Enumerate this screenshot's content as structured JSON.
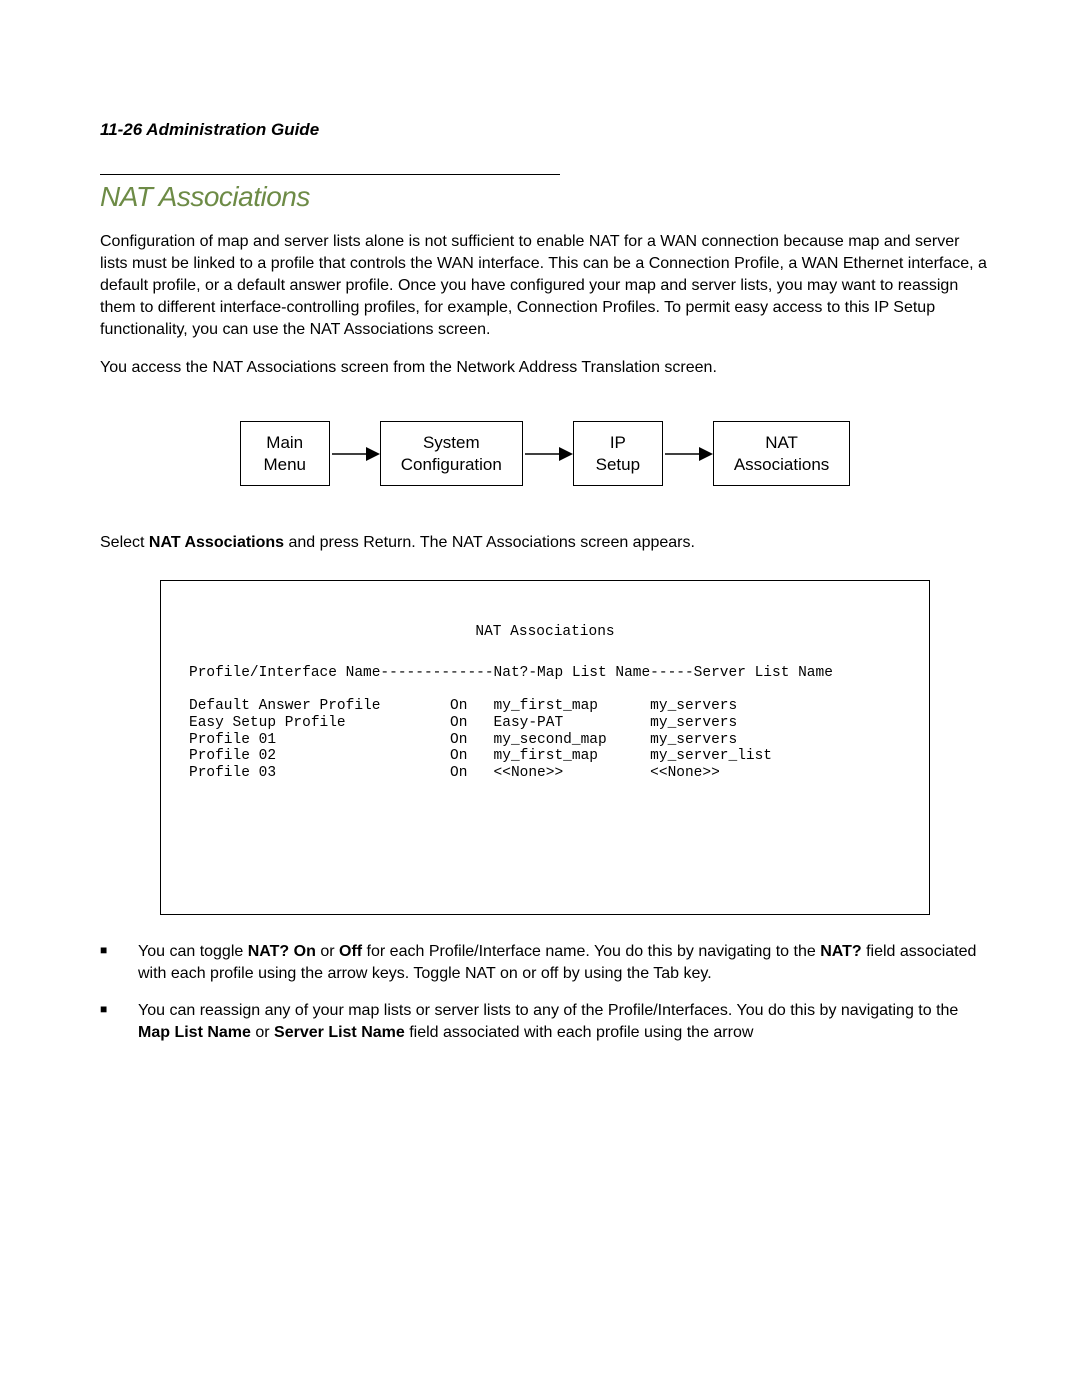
{
  "header": "11-26  Administration Guide",
  "section_title": "NAT Associations",
  "section_title_color": "#6d8b46",
  "intro_para": "Configuration of map and server lists alone is not sufficient to enable NAT for a WAN connection because map and server lists must be linked to a profile that controls the WAN interface. This can be a Connection Profile, a WAN Ethernet interface, a default profile, or a default answer profile. Once you have configured your map and server lists, you may want to reassign them to different interface-controlling profiles, for example, Connection Profiles. To permit easy access to this IP Setup functionality, you can use the NAT Associations screen.",
  "access_para": "You access the NAT Associations screen from the Network Address Translation screen.",
  "flow": {
    "box1_line1": "Main",
    "box1_line2": "Menu",
    "box2_line1": "System",
    "box2_line2": "Configuration",
    "box3_line1": "IP",
    "box3_line2": "Setup",
    "box4_line1": "NAT",
    "box4_line2": "Associations"
  },
  "instruction_pre": "Select ",
  "instruction_bold": "NAT Associations",
  "instruction_post": " and press Return. The NAT Associations screen appears.",
  "terminal": {
    "title": "NAT Associations",
    "header_line": "Profile/Interface Name-------------Nat?-Map List Name-----Server List Name",
    "rows": [
      {
        "name": "Default Answer Profile",
        "nat": "On",
        "map": "my_first_map",
        "srv": "my_servers"
      },
      {
        "name": "Easy Setup Profile",
        "nat": "On",
        "map": "Easy-PAT",
        "srv": "my_servers"
      },
      {
        "name": "Profile 01",
        "nat": "On",
        "map": "my_second_map",
        "srv": "my_servers"
      },
      {
        "name": "Profile 02",
        "nat": "On",
        "map": "my_first_map",
        "srv": "my_server_list"
      },
      {
        "name": "Profile 03",
        "nat": "On",
        "map": "<<None>>",
        "srv": "<<None>>"
      }
    ],
    "col_widths": {
      "name": 30,
      "nat": 5,
      "map": 18
    }
  },
  "bullets": [
    {
      "parts": [
        {
          "t": "You can toggle ",
          "b": false
        },
        {
          "t": "NAT? On",
          "b": true
        },
        {
          "t": " or ",
          "b": false
        },
        {
          "t": "Off",
          "b": true
        },
        {
          "t": " for each Profile/Interface name. You do this by navigating to the ",
          "b": false
        },
        {
          "t": "NAT?",
          "b": true
        },
        {
          "t": " field associated with each profile using the arrow keys. Toggle NAT on or off by using the Tab key.",
          "b": false
        }
      ]
    },
    {
      "parts": [
        {
          "t": "You can reassign any of your map lists or server lists to any of the Profile/Interfaces. You do this by navigating to the ",
          "b": false
        },
        {
          "t": "Map List Name",
          "b": true
        },
        {
          "t": " or ",
          "b": false
        },
        {
          "t": "Server List Name",
          "b": true
        },
        {
          "t": " field associated with each profile using the arrow",
          "b": false
        }
      ]
    }
  ]
}
